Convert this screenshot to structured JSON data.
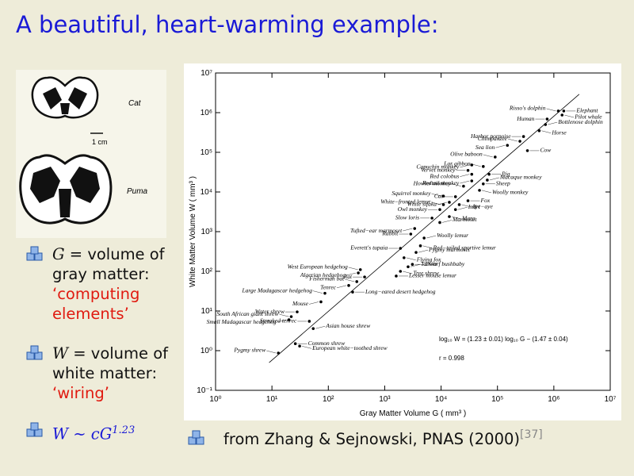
{
  "slide": {
    "title": "A beautiful, heart-warming example:",
    "figure_labels": {
      "cat": "Cat",
      "puma": "Puma",
      "scale": "1 cm"
    },
    "bullets": [
      {
        "symbol": "G",
        "text": "= volume of gray matter:",
        "highlight": "‘computing elements’"
      },
      {
        "symbol": "W",
        "text": "= volume of white matter:",
        "highlight": "‘wiring’"
      },
      {
        "formula": "W ∼ cG",
        "exponent": "1.23"
      }
    ],
    "reference": {
      "text": "from Zhang & Sejnowski, PNAS (2000)",
      "cite": "[37]"
    }
  },
  "chart_data": {
    "type": "scatter",
    "x_label": "Gray Matter Volume  G ( mm³ )",
    "y_label": "White Matter Volume  W ( mm³ )",
    "annotations": [
      "log₁₀ W = (1.23 ± 0.01) log₁₀ G − (1.47 ± 0.04)",
      "r = 0.998"
    ],
    "fit": {
      "slope": 1.23,
      "intercept": -1.47
    },
    "log_scale": true,
    "xlim": [
      1,
      10000000
    ],
    "ylim": [
      0.1,
      10000000
    ],
    "xticks": [
      {
        "value": 1,
        "label": "10⁰"
      },
      {
        "value": 10,
        "label": "10¹"
      },
      {
        "value": 100,
        "label": "10²"
      },
      {
        "value": 1000,
        "label": "10³"
      },
      {
        "value": 10000,
        "label": "10⁴"
      },
      {
        "value": 100000,
        "label": "10⁵"
      },
      {
        "value": 1000000,
        "label": "10⁶"
      },
      {
        "value": 10000000,
        "label": "10⁷"
      }
    ],
    "yticks": [
      {
        "value": 0.1,
        "label": "10⁻¹"
      },
      {
        "value": 1,
        "label": "10⁰"
      },
      {
        "value": 10,
        "label": "10¹"
      },
      {
        "value": 100,
        "label": "10²"
      },
      {
        "value": 1000,
        "label": "10³"
      },
      {
        "value": 10000,
        "label": "10⁴"
      },
      {
        "value": 100000,
        "label": "10⁵"
      },
      {
        "value": 1000000,
        "label": "10⁶"
      },
      {
        "value": 10000000,
        "label": "10⁷"
      }
    ],
    "color": "#000000",
    "points": [
      {
        "name": "Pygmy shrew",
        "x": 13,
        "y": 0.87
      },
      {
        "name": "Common shrew",
        "x": 26,
        "y": 1.5
      },
      {
        "name": "European white−toothed shrew",
        "x": 31,
        "y": 1.3
      },
      {
        "name": "Asian house shrew",
        "x": 54,
        "y": 3.6
      },
      {
        "name": "Streaked tenrec",
        "x": 46,
        "y": 5.5
      },
      {
        "name": "Small Madagascar hedgehog",
        "x": 20,
        "y": 6.0
      },
      {
        "name": "South African giant shrew",
        "x": 22,
        "y": 7.2
      },
      {
        "name": "Water shrew",
        "x": 28,
        "y": 9.5
      },
      {
        "name": "Mouse",
        "x": 74,
        "y": 17
      },
      {
        "name": "Large Madagascar hedgehog",
        "x": 87,
        "y": 28
      },
      {
        "name": "Long−eared desert hedgehog",
        "x": 270,
        "y": 30
      },
      {
        "name": "Tenrec",
        "x": 230,
        "y": 44
      },
      {
        "name": "Fisherman bat",
        "x": 320,
        "y": 55
      },
      {
        "name": "Rat",
        "x": 440,
        "y": 72
      },
      {
        "name": "Algerian hedgehog",
        "x": 340,
        "y": 91
      },
      {
        "name": "West European hedgehog",
        "x": 370,
        "y": 110
      },
      {
        "name": "Lesser mouse lemur",
        "x": 1600,
        "y": 76
      },
      {
        "name": "Tree shrew",
        "x": 1900,
        "y": 100
      },
      {
        "name": "Tarsier",
        "x": 2600,
        "y": 130
      },
      {
        "name": "Dwarf bushbaby",
        "x": 3100,
        "y": 150
      },
      {
        "name": "Flying fox",
        "x": 2200,
        "y": 220
      },
      {
        "name": "Pygmy marmoset",
        "x": 3600,
        "y": 300
      },
      {
        "name": "Everett's tupaia",
        "x": 1900,
        "y": 380
      },
      {
        "name": "Red−tailed sportive lemur",
        "x": 4300,
        "y": 440
      },
      {
        "name": "Woolly lemur",
        "x": 5000,
        "y": 690
      },
      {
        "name": "Rabbit",
        "x": 2900,
        "y": 870
      },
      {
        "name": "Tufted−ear marmoset",
        "x": 3400,
        "y": 1200
      },
      {
        "name": "Marmoset",
        "x": 9500,
        "y": 1700
      },
      {
        "name": "Slow loris",
        "x": 6900,
        "y": 2200
      },
      {
        "name": "Mara",
        "x": 14000,
        "y": 2400
      },
      {
        "name": "Indri",
        "x": 18000,
        "y": 3600
      },
      {
        "name": "Owl monkey",
        "x": 9500,
        "y": 3600
      },
      {
        "name": "Aye−aye",
        "x": 21000,
        "y": 4800
      },
      {
        "name": "White−fronted lemur",
        "x": 11000,
        "y": 4800
      },
      {
        "name": "Fox",
        "x": 30000,
        "y": 6000
      },
      {
        "name": "White sifaka",
        "x": 14000,
        "y": 5500
      },
      {
        "name": "Squirrel monkey",
        "x": 11000,
        "y": 7900
      },
      {
        "name": "Cat",
        "x": 18000,
        "y": 7600
      },
      {
        "name": "Woolly monkey",
        "x": 48000,
        "y": 11000
      },
      {
        "name": "Howler monkey",
        "x": 25000,
        "y": 14000
      },
      {
        "name": "Sheep",
        "x": 56000,
        "y": 16000
      },
      {
        "name": "Redtail monkey",
        "x": 35000,
        "y": 19000
      },
      {
        "name": "Macaque monkey",
        "x": 66000,
        "y": 20000
      },
      {
        "name": "Pig",
        "x": 71000,
        "y": 28000
      },
      {
        "name": "Red colobus",
        "x": 35000,
        "y": 28000
      },
      {
        "name": "Lar gibbon",
        "x": 56000,
        "y": 44000
      },
      {
        "name": "Vervet monkey",
        "x": 30000,
        "y": 35000
      },
      {
        "name": "Capuchin monkey",
        "x": 35000,
        "y": 48000
      },
      {
        "name": "Olive baboon",
        "x": 91000,
        "y": 76000
      },
      {
        "name": "Cow",
        "x": 340000,
        "y": 110000
      },
      {
        "name": "Sea lion",
        "x": 150000,
        "y": 150000
      },
      {
        "name": "Chimpanzee",
        "x": 250000,
        "y": 190000
      },
      {
        "name": "Harbor porpoise",
        "x": 290000,
        "y": 250000
      },
      {
        "name": "Horse",
        "x": 550000,
        "y": 350000
      },
      {
        "name": "Bottlenose dolphin",
        "x": 710000,
        "y": 500000
      },
      {
        "name": "Human",
        "x": 760000,
        "y": 690000
      },
      {
        "name": "Pilot whale",
        "x": 1400000,
        "y": 870000
      },
      {
        "name": "Risso's dolphin",
        "x": 1200000,
        "y": 1100000
      },
      {
        "name": "Elephant",
        "x": 1500000,
        "y": 1100000
      }
    ]
  }
}
